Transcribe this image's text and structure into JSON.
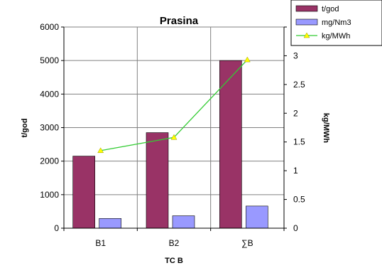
{
  "chart_data": {
    "type": "bar",
    "title": "Prasina",
    "xlabel": "TC B",
    "ylabel": "t/god",
    "y2label": "kg/MWh",
    "categories": [
      "B1",
      "B2",
      "∑B"
    ],
    "ylim": [
      0,
      6000
    ],
    "yticks": [
      "0",
      "1000",
      "2000",
      "3000",
      "4000",
      "5000",
      "6000"
    ],
    "y2lim": [
      0,
      3.5
    ],
    "y2ticks": [
      "0",
      "0.5",
      "1",
      "1.5",
      "2",
      "2.5",
      "3",
      "3.5"
    ],
    "grid": true,
    "legend_position": "top-right",
    "series": [
      {
        "name": "t/god",
        "type": "bar",
        "axis": "left",
        "color": "#993366",
        "values": [
          2150,
          2850,
          5000
        ]
      },
      {
        "name": "mg/Nm3",
        "type": "bar",
        "axis": "left",
        "color": "#9999FF",
        "values": [
          290,
          370,
          660
        ]
      },
      {
        "name": "kg/MWh",
        "type": "line",
        "axis": "right",
        "color": "#33CC33",
        "marker_color": "#FFFF00",
        "values": [
          1.35,
          1.58,
          2.93
        ]
      }
    ]
  }
}
